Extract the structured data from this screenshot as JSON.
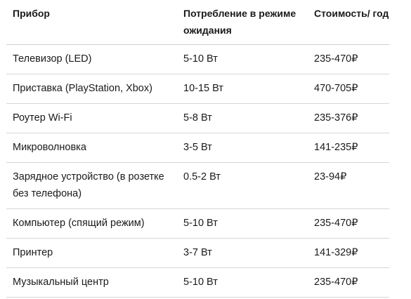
{
  "table": {
    "headers": [
      "Прибор",
      "Потребление в режиме ожидания",
      "Стоимость/ год"
    ],
    "rows": [
      {
        "device": "Телевизор (LED)",
        "consumption": "5-10 Вт",
        "cost": "235-470₽"
      },
      {
        "device": "Приставка (PlayStation, Xbox)",
        "consumption": "10-15 Вт",
        "cost": "470-705₽"
      },
      {
        "device": "Роутер Wi-Fi",
        "consumption": "5-8 Вт",
        "cost": "235-376₽"
      },
      {
        "device": "Микроволновка",
        "consumption": "3-5 Вт",
        "cost": "141-235₽"
      },
      {
        "device": "Зарядное устройство (в розетке без телефона)",
        "consumption": "0.5-2 Вт",
        "cost": "23-94₽"
      },
      {
        "device": "Компьютер (спящий режим)",
        "consumption": "5-10 Вт",
        "cost": "235-470₽"
      },
      {
        "device": "Принтер",
        "consumption": "3-7 Вт",
        "cost": "141-329₽"
      },
      {
        "device": "Музыкальный центр",
        "consumption": "5-10 Вт",
        "cost": "235-470₽"
      }
    ]
  }
}
